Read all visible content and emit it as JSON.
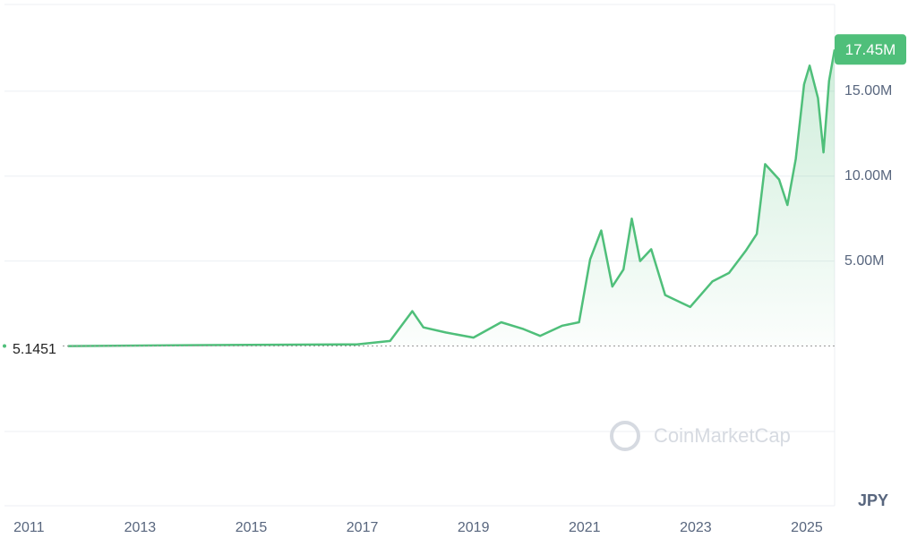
{
  "chart_data": {
    "type": "line",
    "x": [
      2011.7,
      2013.9,
      2016.9,
      2017.5,
      2017.9,
      2018.1,
      2018.5,
      2019.0,
      2019.5,
      2019.9,
      2020.2,
      2020.6,
      2020.9,
      2021.1,
      2021.3,
      2021.5,
      2021.7,
      2021.85,
      2022.0,
      2022.2,
      2022.45,
      2022.9,
      2023.3,
      2023.6,
      2023.9,
      2024.1,
      2024.25,
      2024.5,
      2024.65,
      2024.8,
      2024.95,
      2025.05,
      2025.2,
      2025.3,
      2025.4,
      2025.5
    ],
    "values": [
      0,
      50000,
      100000,
      300000,
      2050000,
      1100000,
      800000,
      500000,
      1400000,
      1000000,
      600000,
      1200000,
      1400000,
      5100000,
      6800000,
      3500000,
      4500000,
      7500000,
      5000000,
      5700000,
      3000000,
      2300000,
      3800000,
      4300000,
      5600000,
      6600000,
      10700000,
      9800000,
      8300000,
      11000000,
      15400000,
      16500000,
      14600000,
      11400000,
      15600000,
      17450000
    ],
    "color": "#4fbf7a",
    "xlim": [
      2010.56,
      2025.5
    ],
    "xticks": [
      2011,
      2013,
      2015,
      2017,
      2019,
      2021,
      2023,
      2025
    ],
    "ylim": [
      -9400000,
      20100000
    ],
    "yticks": [
      {
        "value": 5000000,
        "label": "5.00M"
      },
      {
        "value": 10000000,
        "label": "10.00M"
      },
      {
        "value": 15000000,
        "label": "15.00M"
      }
    ],
    "grid": true,
    "start_value": 5.1451,
    "last_value": {
      "value": 17450000,
      "label": "17.45M"
    },
    "currency": "JPY",
    "watermark": "CoinMarketCap"
  }
}
